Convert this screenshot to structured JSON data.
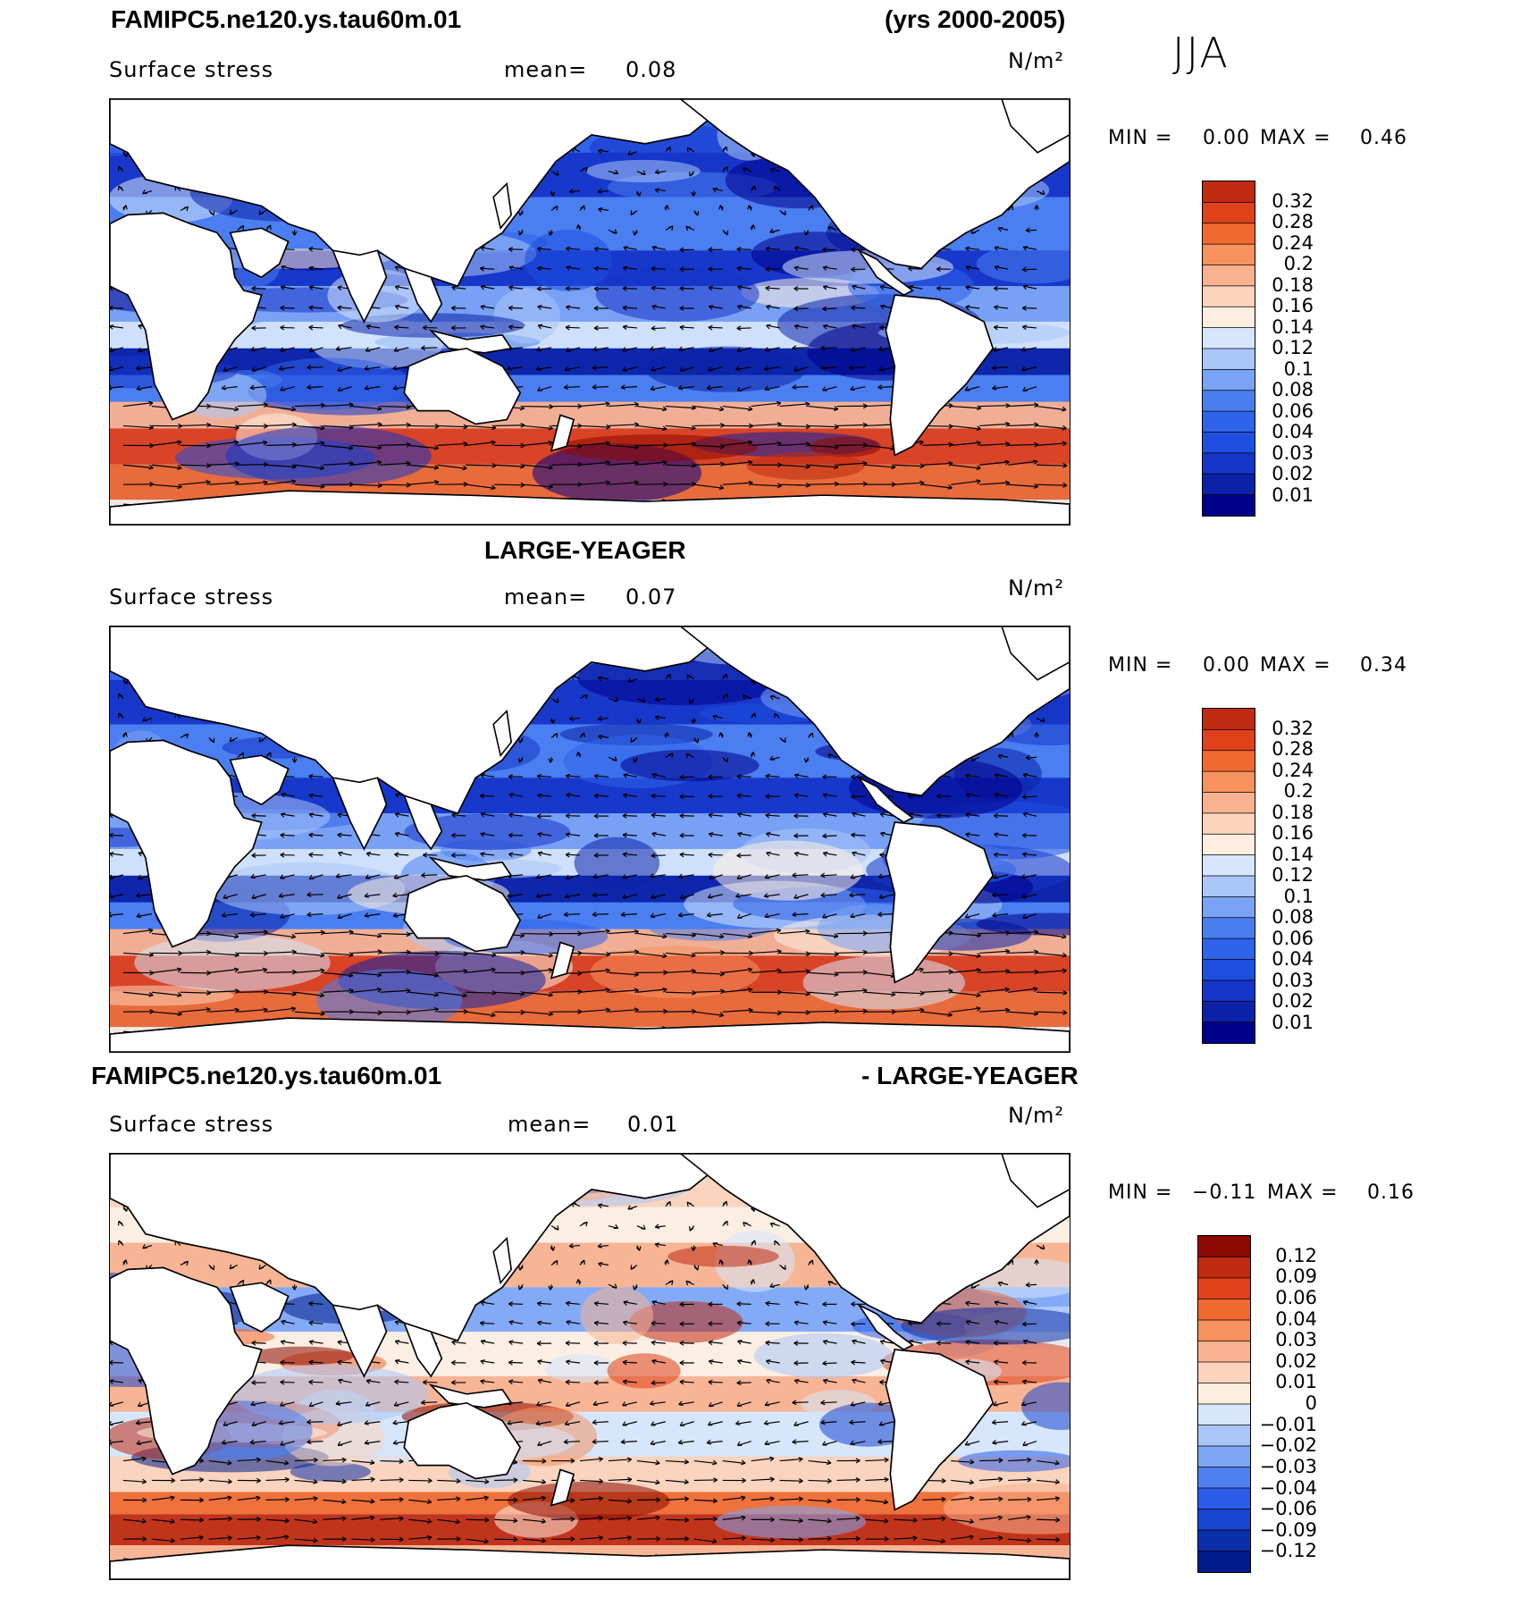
{
  "header": {
    "title": "FAMIPC5.ne120.ys.tau60m.01",
    "years": "(yrs 2000-2005)",
    "season": "JJA"
  },
  "panels": [
    {
      "heading": "",
      "variable": "Surface stress",
      "mean_label": "mean=",
      "mean_value": "0.08",
      "units": "N/m²",
      "min_label": "MIN =",
      "min_value": "0.00",
      "max_label": "MAX =",
      "max_value": "0.46",
      "colorbar": [
        "0.32",
        "0.28",
        "0.24",
        "0.2",
        "0.18",
        "0.16",
        "0.14",
        "0.12",
        "0.1",
        "0.08",
        "0.06",
        "0.04",
        "0.03",
        "0.02",
        "0.01"
      ]
    },
    {
      "heading": "LARGE-YEAGER",
      "variable": "Surface stress",
      "mean_label": "mean=",
      "mean_value": "0.07",
      "units": "N/m²",
      "min_label": "MIN =",
      "min_value": "0.00",
      "max_label": "MAX =",
      "max_value": "0.34",
      "colorbar": [
        "0.32",
        "0.28",
        "0.24",
        "0.2",
        "0.18",
        "0.16",
        "0.14",
        "0.12",
        "0.1",
        "0.08",
        "0.06",
        "0.04",
        "0.03",
        "0.02",
        "0.01"
      ]
    },
    {
      "heading_left": "FAMIPC5.ne120.ys.tau60m.01",
      "heading_right": "- LARGE-YEAGER",
      "variable": "Surface stress",
      "mean_label": "mean=",
      "mean_value": "0.01",
      "units": "N/m²",
      "min_label": "MIN =",
      "min_value": "−0.11",
      "max_label": "MAX =",
      "max_value": "0.16",
      "colorbar": [
        "0.12",
        "0.09",
        "0.06",
        "0.04",
        "0.03",
        "0.02",
        "0.01",
        "0",
        "−0.01",
        "−0.02",
        "−0.03",
        "−0.04",
        "−0.06",
        "−0.09",
        "−0.12"
      ]
    }
  ],
  "colors": {
    "abs_scale": [
      "#00008b",
      "#0b22a8",
      "#1535c8",
      "#1e4fe0",
      "#2f63ea",
      "#4a7ef0",
      "#7aa3f5",
      "#aac6f8",
      "#d6e6fc",
      "#fdeee0",
      "#fcd3bc",
      "#f9b28f",
      "#f7915e",
      "#f06a30",
      "#e0401a",
      "#c02a10",
      "#8b0a00"
    ],
    "diff_scale": [
      "#001c8a",
      "#0b2fa8",
      "#1a45d0",
      "#2a5ce8",
      "#4e80f0",
      "#7ea6f6",
      "#aac6f8",
      "#d6e6fc",
      "#fdeee0",
      "#fcd3bc",
      "#f9b28f",
      "#f7915e",
      "#f06a30",
      "#e0401a",
      "#c02a10",
      "#8b0a00"
    ],
    "land": "#ffffff",
    "coast": "#000000"
  }
}
